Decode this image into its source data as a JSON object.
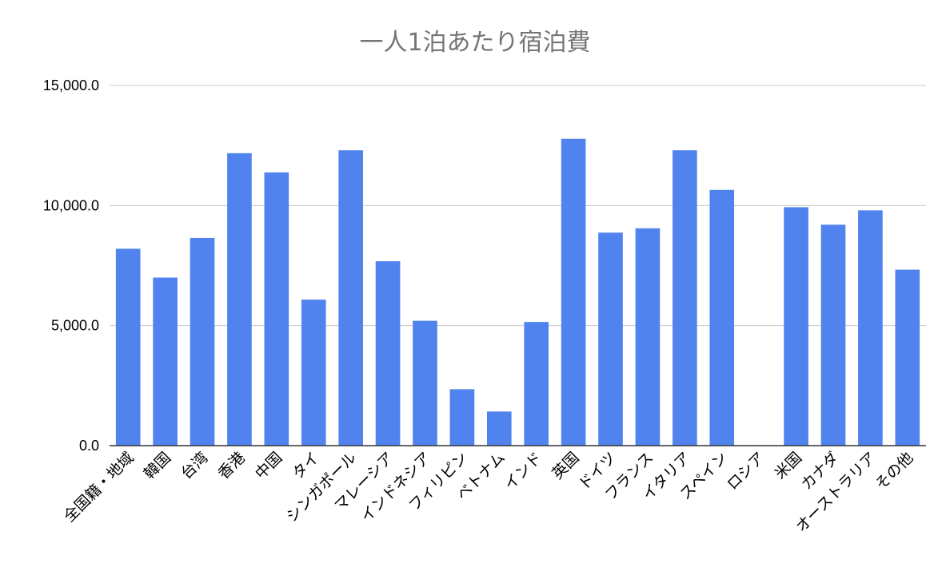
{
  "chart_data": {
    "type": "bar",
    "title": "一人1泊あたり宿泊費",
    "categories": [
      "全国籍・地域",
      "韓国",
      "台湾",
      "香港",
      "中国",
      "タイ",
      "シンガポール",
      "マレーシア",
      "インドネシア",
      "フィリピン",
      "ベトナム",
      "インド",
      "英国",
      "ドイツ",
      "フランス",
      "イタリア",
      "スペイン",
      "ロシア",
      "米国",
      "カナダ",
      "オーストラリア",
      "その他"
    ],
    "values": [
      8200,
      7000,
      8650,
      12180,
      11380,
      6080,
      12300,
      7680,
      5200,
      2350,
      1420,
      5150,
      12780,
      8870,
      9050,
      12300,
      10650,
      null,
      9930,
      9200,
      9800,
      7330
    ],
    "ylim": [
      0,
      15000
    ],
    "yticks": [
      0,
      5000,
      10000,
      15000
    ],
    "ytick_labels": [
      "0.0",
      "5,000.0",
      "10,000.0",
      "15,000.0"
    ],
    "bar_color": "#5183ee",
    "grid": true,
    "legend": "none"
  }
}
